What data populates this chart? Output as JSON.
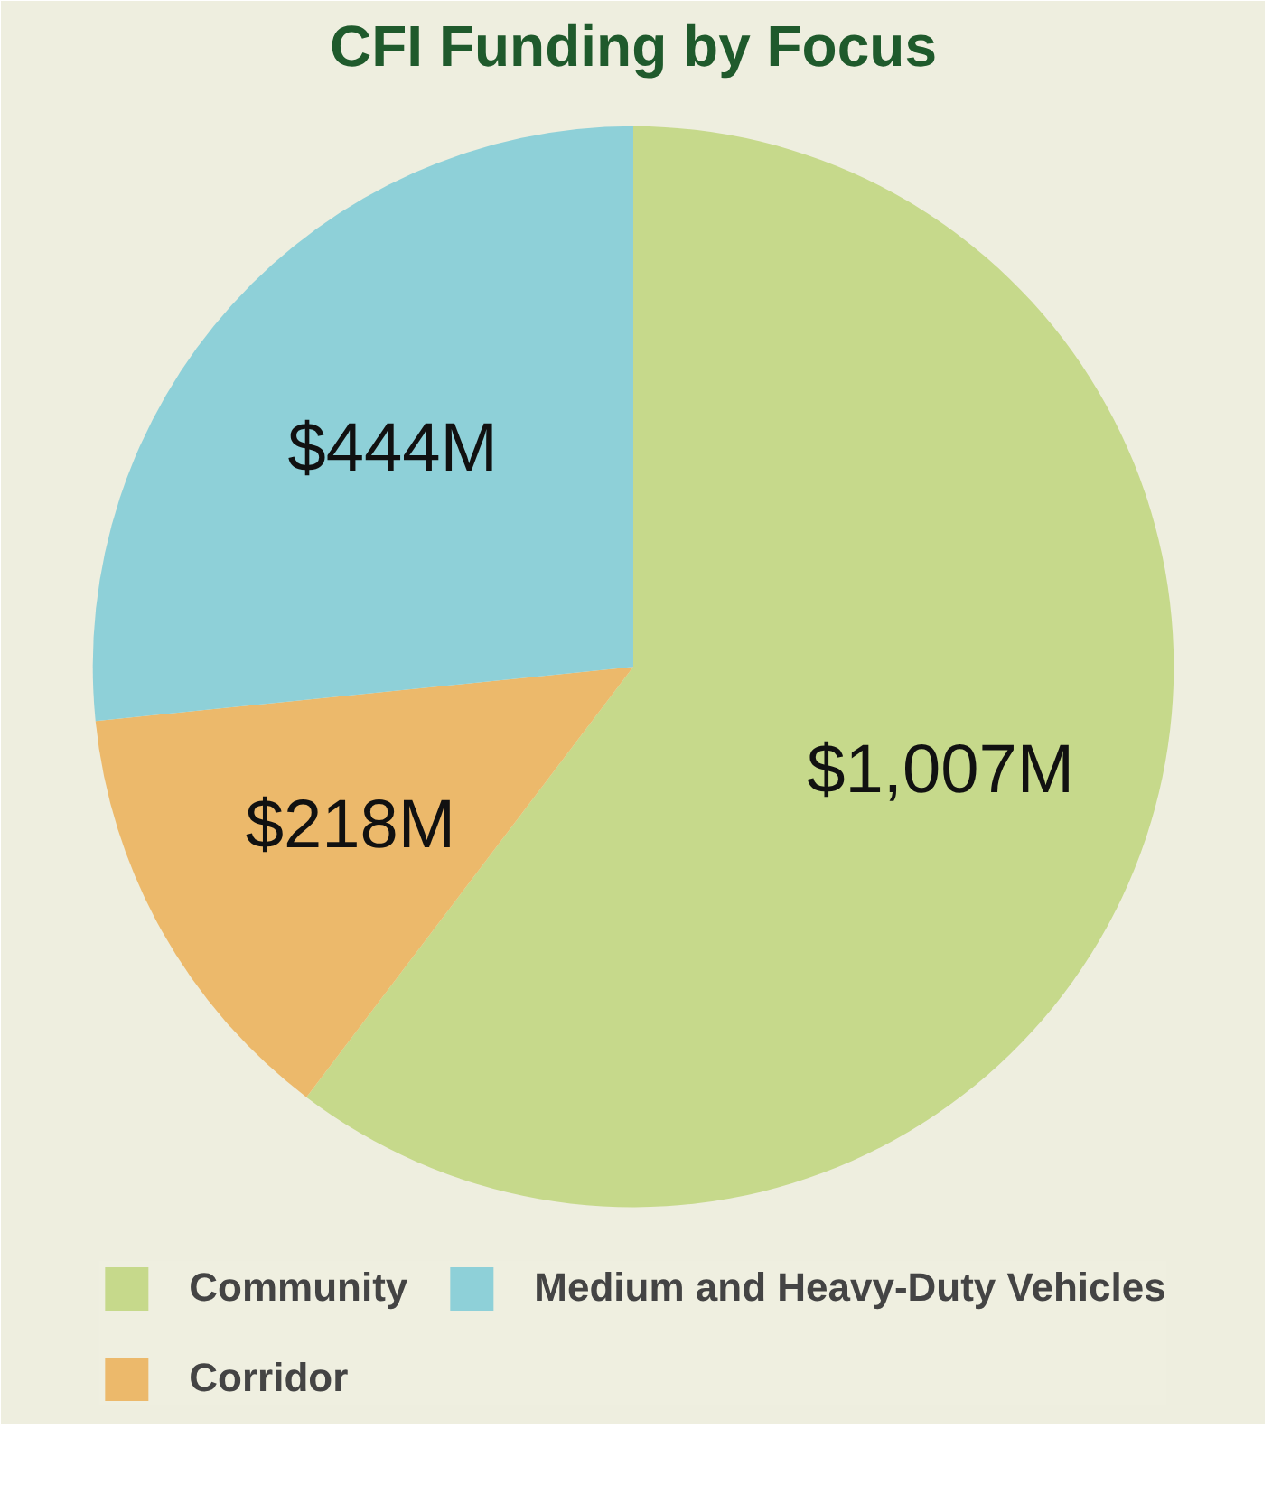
{
  "chart_data": {
    "type": "pie",
    "title": "CFI Funding by Focus",
    "categories": [
      "Community",
      "Corridor",
      "Medium and Heavy-Duty Vehicles"
    ],
    "values": [
      1007,
      218,
      444
    ],
    "colors": [
      "#c6d98b",
      "#ecb96b",
      "#8ed0d8"
    ],
    "value_labels": [
      "$1,007M",
      "$218M",
      "$444M"
    ],
    "legend": "bottom"
  }
}
